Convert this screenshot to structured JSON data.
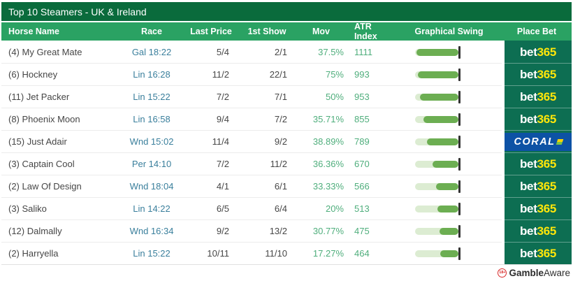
{
  "title": "Top 10 Steamers - UK & Ireland",
  "table": {
    "columns": [
      "Horse Name",
      "Race",
      "Last Price",
      "1st Show",
      "Mov",
      "ATR Index",
      "Graphical Swing",
      "Place Bet"
    ],
    "rows": [
      {
        "horse": "(4) My Great Mate",
        "race": "Gal 18:22",
        "last_price": "5/4",
        "first_show": "2/1",
        "mov": "37.5%",
        "atr_index": "1111",
        "swing_percent": 96,
        "bookmaker": "bet365"
      },
      {
        "horse": "(6) Hockney",
        "race": "Lin 16:28",
        "last_price": "11/2",
        "first_show": "22/1",
        "mov": "75%",
        "atr_index": "993",
        "swing_percent": 93,
        "bookmaker": "bet365"
      },
      {
        "horse": "(11) Jet Packer",
        "race": "Lin 15:22",
        "last_price": "7/2",
        "first_show": "7/1",
        "mov": "50%",
        "atr_index": "953",
        "swing_percent": 88,
        "bookmaker": "bet365"
      },
      {
        "horse": "(8) Phoenix Moon",
        "race": "Lin 16:58",
        "last_price": "9/4",
        "first_show": "7/2",
        "mov": "35.71%",
        "atr_index": "855",
        "swing_percent": 80,
        "bookmaker": "bet365"
      },
      {
        "horse": "(15) Just Adair",
        "race": "Wnd 15:02",
        "last_price": "11/4",
        "first_show": "9/2",
        "mov": "38.89%",
        "atr_index": "789",
        "swing_percent": 72,
        "bookmaker": "coral"
      },
      {
        "horse": "(3) Captain Cool",
        "race": "Per 14:10",
        "last_price": "7/2",
        "first_show": "11/2",
        "mov": "36.36%",
        "atr_index": "670",
        "swing_percent": 60,
        "bookmaker": "bet365"
      },
      {
        "horse": "(2) Law Of Design",
        "race": "Wnd 18:04",
        "last_price": "4/1",
        "first_show": "6/1",
        "mov": "33.33%",
        "atr_index": "566",
        "swing_percent": 52,
        "bookmaker": "bet365"
      },
      {
        "horse": "(3) Saliko",
        "race": "Lin 14:22",
        "last_price": "6/5",
        "first_show": "6/4",
        "mov": "20%",
        "atr_index": "513",
        "swing_percent": 49,
        "bookmaker": "bet365"
      },
      {
        "horse": "(12) Dalmally",
        "race": "Wnd 16:34",
        "last_price": "9/2",
        "first_show": "13/2",
        "mov": "30.77%",
        "atr_index": "475",
        "swing_percent": 44,
        "bookmaker": "bet365"
      },
      {
        "horse": "(2) Harryella",
        "race": "Lin 15:22",
        "last_price": "10/11",
        "first_show": "11/10",
        "mov": "17.27%",
        "atr_index": "464",
        "swing_percent": 42,
        "bookmaker": "bet365"
      }
    ]
  },
  "bookmakers": {
    "bet365": {
      "part1": "bet",
      "part2": "365",
      "bg": "#0d6e52",
      "part1_color": "#ffffff",
      "part2_color": "#ffe60a"
    },
    "coral": {
      "label": "CORAL",
      "bg": "#0d52a5",
      "text_color": "#ffffff"
    }
  },
  "footer": {
    "gambleaware_bold": "Gamble",
    "gambleaware_rest": "Aware",
    "age_badge": "18+"
  },
  "colors": {
    "title_bar": "#0a6b3c",
    "header": "#2aa263",
    "race_link": "#3a7f9c",
    "stat_green": "#4fae7c",
    "swing_fill": "#6cae52",
    "swing_track": "#dcecd2",
    "swing_tick": "#333333",
    "bet365_bg": "#0d6e52",
    "coral_bg": "#0d52a5"
  }
}
